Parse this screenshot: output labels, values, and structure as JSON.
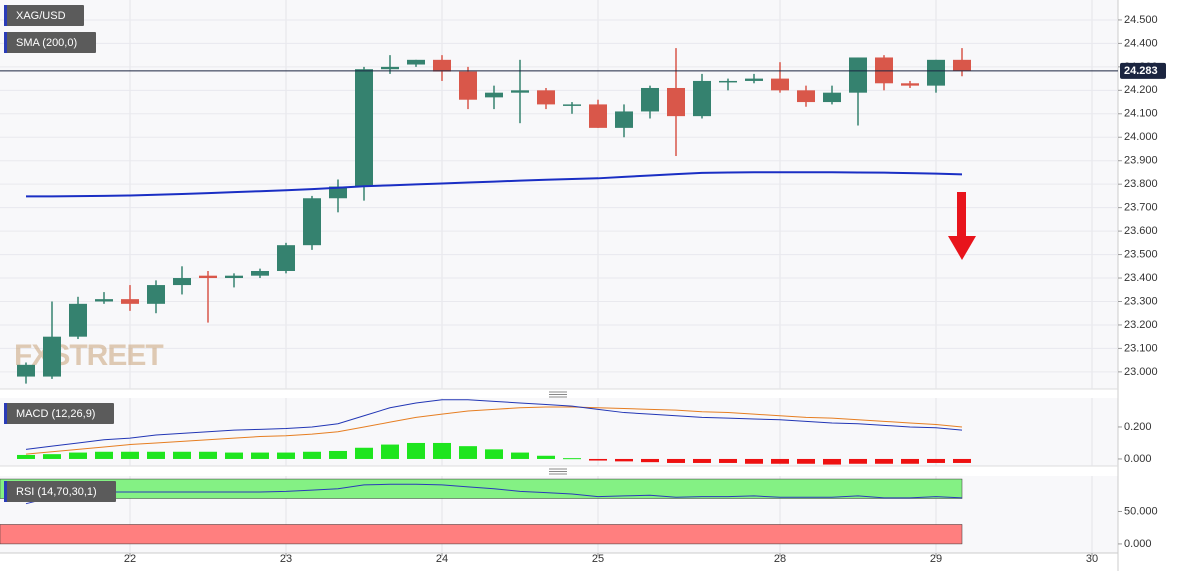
{
  "chart_data": [
    {
      "type": "candlestick",
      "series": [
        {
          "name": "XAG/USD",
          "up_color": "#35826f",
          "down_color": "#d9574a",
          "x": [
            0,
            1,
            2,
            3,
            4,
            5,
            6,
            7,
            8,
            9,
            10,
            11,
            12,
            13,
            14,
            15,
            16,
            17,
            18,
            19,
            20,
            21,
            22,
            23,
            24,
            25,
            26,
            27,
            28,
            29,
            30,
            31,
            32,
            33,
            34,
            35,
            36
          ],
          "open": [
            22.98,
            22.98,
            23.15,
            23.3,
            23.31,
            23.29,
            23.37,
            23.41,
            23.4,
            23.41,
            23.43,
            23.54,
            23.74,
            23.79,
            24.29,
            24.31,
            24.33,
            24.28,
            24.17,
            24.19,
            24.2,
            24.14,
            24.14,
            24.04,
            24.11,
            24.21,
            24.09,
            24.24,
            24.24,
            24.25,
            24.2,
            24.15,
            24.19,
            24.34,
            24.23,
            24.22,
            24.33
          ],
          "high": [
            23.04,
            23.3,
            23.32,
            23.34,
            23.37,
            23.39,
            23.45,
            23.43,
            23.42,
            23.44,
            23.55,
            23.75,
            23.82,
            24.3,
            24.35,
            24.33,
            24.35,
            24.3,
            24.22,
            24.33,
            24.21,
            24.15,
            24.16,
            24.14,
            24.22,
            24.38,
            24.27,
            24.25,
            24.27,
            24.32,
            24.22,
            24.22,
            24.34,
            24.35,
            24.24,
            24.33,
            24.38
          ],
          "low": [
            22.95,
            22.97,
            23.14,
            23.29,
            23.26,
            23.25,
            23.33,
            23.21,
            23.36,
            23.4,
            23.42,
            23.52,
            23.68,
            23.73,
            24.27,
            24.3,
            24.24,
            24.12,
            24.12,
            24.06,
            24.12,
            24.1,
            24.04,
            24.0,
            24.08,
            23.92,
            24.08,
            24.2,
            24.23,
            24.19,
            24.13,
            24.14,
            24.05,
            24.2,
            24.21,
            24.19,
            24.26
          ],
          "close": [
            23.03,
            23.15,
            23.29,
            23.31,
            23.29,
            23.37,
            23.4,
            23.4,
            23.41,
            23.43,
            23.54,
            23.74,
            23.79,
            24.29,
            24.3,
            24.33,
            24.28,
            24.16,
            24.19,
            24.2,
            24.14,
            24.14,
            24.04,
            24.11,
            24.21,
            24.09,
            24.24,
            24.24,
            24.25,
            24.2,
            24.15,
            24.19,
            24.34,
            24.23,
            24.22,
            24.33,
            24.283
          ]
        }
      ],
      "overlays": [
        {
          "name": "SMA (200,0)",
          "color": "#1a2ec4",
          "values": [
            23.748,
            23.748,
            23.749,
            23.75,
            23.752,
            23.755,
            23.758,
            23.762,
            23.766,
            23.77,
            23.774,
            23.779,
            23.785,
            23.791,
            23.795,
            23.799,
            23.803,
            23.807,
            23.811,
            23.815,
            23.819,
            23.822,
            23.825,
            23.831,
            23.837,
            23.843,
            23.848,
            23.85,
            23.851,
            23.851,
            23.851,
            23.851,
            23.85,
            23.849,
            23.847,
            23.845,
            23.842
          ]
        }
      ],
      "last_price": 24.283,
      "watermark": "FXSTREET",
      "xlim": [
        -1,
        42
      ],
      "ylim": [
        22.927,
        24.585
      ],
      "yticks": [
        {
          "value": 24.5,
          "label": "24.500"
        },
        {
          "value": 24.4,
          "label": "24.400"
        },
        {
          "value": 24.3,
          "label": "24.300"
        },
        {
          "value": 24.2,
          "label": "24.200"
        },
        {
          "value": 24.1,
          "label": "24.100"
        },
        {
          "value": 24.0,
          "label": "24.000"
        },
        {
          "value": 23.9,
          "label": "23.900"
        },
        {
          "value": 23.8,
          "label": "23.800"
        },
        {
          "value": 23.7,
          "label": "23.700"
        },
        {
          "value": 23.6,
          "label": "23.600"
        },
        {
          "value": 23.5,
          "label": "23.500"
        },
        {
          "value": 23.4,
          "label": "23.400"
        },
        {
          "value": 23.3,
          "label": "23.300"
        },
        {
          "value": 23.2,
          "label": "23.200"
        },
        {
          "value": 23.1,
          "label": "23.100"
        },
        {
          "value": 23.0,
          "label": "23.000"
        }
      ],
      "grid": true
    },
    {
      "type": "macd",
      "name": "MACD (12,26,9)",
      "x": [
        0,
        1,
        2,
        3,
        4,
        5,
        6,
        7,
        8,
        9,
        10,
        11,
        12,
        13,
        14,
        15,
        16,
        17,
        18,
        19,
        20,
        21,
        22,
        23,
        24,
        25,
        26,
        27,
        28,
        29,
        30,
        31,
        32,
        33,
        34,
        35,
        36
      ],
      "histogram": {
        "up_color": "#1ee51e",
        "down_color": "#ee1111",
        "values": [
          0.025,
          0.03,
          0.04,
          0.045,
          0.045,
          0.045,
          0.045,
          0.045,
          0.04,
          0.04,
          0.04,
          0.045,
          0.05,
          0.07,
          0.09,
          0.1,
          0.1,
          0.08,
          0.06,
          0.04,
          0.02,
          0.005,
          -0.01,
          -0.015,
          -0.02,
          -0.025,
          -0.025,
          -0.025,
          -0.03,
          -0.03,
          -0.03,
          -0.035,
          -0.03,
          -0.03,
          -0.03,
          -0.025,
          -0.025
        ]
      },
      "macd_line": {
        "color": "#2236b5",
        "values": [
          0.06,
          0.08,
          0.1,
          0.12,
          0.13,
          0.15,
          0.16,
          0.17,
          0.18,
          0.185,
          0.19,
          0.2,
          0.22,
          0.27,
          0.32,
          0.35,
          0.37,
          0.37,
          0.36,
          0.35,
          0.34,
          0.33,
          0.31,
          0.29,
          0.28,
          0.27,
          0.26,
          0.255,
          0.25,
          0.245,
          0.235,
          0.225,
          0.22,
          0.21,
          0.2,
          0.195,
          0.18
        ]
      },
      "signal_line": {
        "color": "#e67e22",
        "values": [
          0.03,
          0.045,
          0.06,
          0.075,
          0.09,
          0.1,
          0.11,
          0.12,
          0.13,
          0.14,
          0.145,
          0.155,
          0.17,
          0.2,
          0.23,
          0.26,
          0.28,
          0.3,
          0.31,
          0.32,
          0.325,
          0.325,
          0.32,
          0.315,
          0.31,
          0.305,
          0.295,
          0.29,
          0.28,
          0.27,
          0.26,
          0.255,
          0.245,
          0.235,
          0.225,
          0.215,
          0.2
        ]
      },
      "xlim": [
        -1,
        42
      ],
      "ylim": [
        -0.044,
        0.381
      ],
      "yticks": [
        {
          "value": 0.2,
          "label": "0.200"
        },
        {
          "value": 0,
          "label": "0.000"
        }
      ]
    },
    {
      "type": "rsi",
      "name": "RSI (14,70,30,1)",
      "color": "#2a3bb8",
      "x": [
        0,
        1,
        2,
        3,
        4,
        5,
        6,
        7,
        8,
        9,
        10,
        11,
        12,
        13,
        14,
        15,
        16,
        17,
        18,
        19,
        20,
        21,
        22,
        23,
        24,
        25,
        26,
        27,
        28,
        29,
        30,
        31,
        32,
        33,
        34,
        35,
        36
      ],
      "values": [
        62,
        72,
        78,
        80,
        80,
        80,
        80,
        80,
        80,
        80,
        81,
        83,
        85,
        91,
        92,
        92,
        91,
        88,
        85,
        81,
        79,
        77,
        73,
        74,
        75,
        72,
        73,
        73,
        74,
        72,
        72,
        72,
        74,
        71,
        71,
        73,
        71
      ],
      "bands": [
        {
          "from": 70,
          "to": 100,
          "color": "#84f184"
        },
        {
          "from": 0,
          "to": 30,
          "color": "#ff7f7f"
        }
      ],
      "xlim": [
        -1,
        42
      ],
      "ylim": [
        -14,
        104.7
      ],
      "yticks": [
        {
          "value": 50,
          "label": "50.000"
        },
        {
          "value": 0,
          "label": "0.000"
        }
      ],
      "xticks": [
        {
          "value": 4,
          "label": "22"
        },
        {
          "value": 10,
          "label": "23"
        },
        {
          "value": 16,
          "label": "24"
        },
        {
          "value": 22,
          "label": "25"
        },
        {
          "value": 29,
          "label": "28"
        },
        {
          "value": 35,
          "label": "29"
        },
        {
          "value": 41,
          "label": "30"
        }
      ]
    }
  ]
}
